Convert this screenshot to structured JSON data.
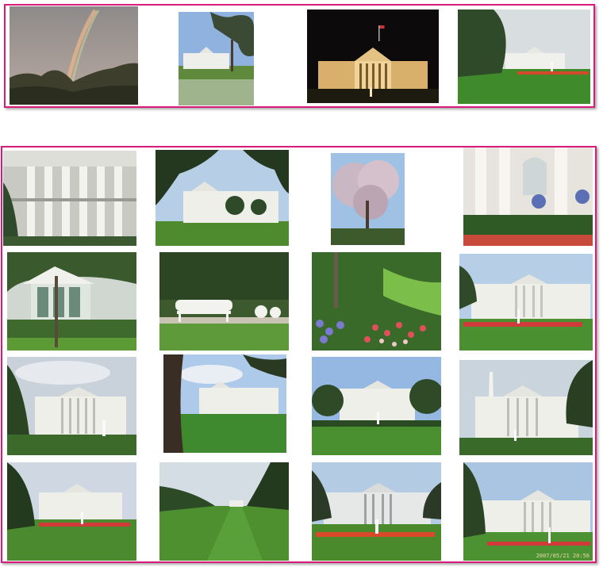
{
  "gallery": {
    "groups": [
      {
        "name": "top-row-group",
        "count": 4
      },
      {
        "name": "main-grid-group",
        "count": 16
      }
    ],
    "photos": [
      {
        "id": "p1",
        "subject": "rainbow-over-treeline"
      },
      {
        "id": "p2",
        "subject": "white-house-behind-tree"
      },
      {
        "id": "p3",
        "subject": "white-house-at-night"
      },
      {
        "id": "p4",
        "subject": "white-house-lawn-fountain"
      },
      {
        "id": "p5",
        "subject": "south-portico-columns"
      },
      {
        "id": "p6",
        "subject": "white-house-framed-by-trees"
      },
      {
        "id": "p7",
        "subject": "flowering-magnolia-tree"
      },
      {
        "id": "p8",
        "subject": "colonnade-flower-pots"
      },
      {
        "id": "p9",
        "subject": "garden-gazebo"
      },
      {
        "id": "p10",
        "subject": "white-garden-bench"
      },
      {
        "id": "p11",
        "subject": "rose-garden-flowers"
      },
      {
        "id": "p12",
        "subject": "white-house-red-flowerbed"
      },
      {
        "id": "p13",
        "subject": "white-house-cloudy-sky"
      },
      {
        "id": "p14",
        "subject": "white-house-tree-trunk"
      },
      {
        "id": "p15",
        "subject": "white-house-blue-sky"
      },
      {
        "id": "p16",
        "subject": "washington-monument-view"
      },
      {
        "id": "p17",
        "subject": "north-lawn-fountain"
      },
      {
        "id": "p18",
        "subject": "long-lawn-distant-house"
      },
      {
        "id": "p19",
        "subject": "north-facade-fountain"
      },
      {
        "id": "p20",
        "subject": "white-house-dated-photo"
      }
    ],
    "date_stamp": "2007/05/21 20:56"
  },
  "colors": {
    "group_border": "#d81b7a",
    "lawn": "#4f8f2e",
    "sky": "#a9c8e8",
    "building": "#f2f2ee"
  }
}
